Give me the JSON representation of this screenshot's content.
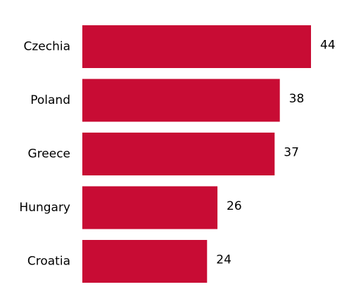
{
  "chart_data": {
    "type": "bar",
    "orientation": "horizontal",
    "categories": [
      "Czechia",
      "Poland",
      "Greece",
      "Hungary",
      "Croatia"
    ],
    "values": [
      44,
      38,
      37,
      26,
      24
    ],
    "color": "#c80c34"
  }
}
